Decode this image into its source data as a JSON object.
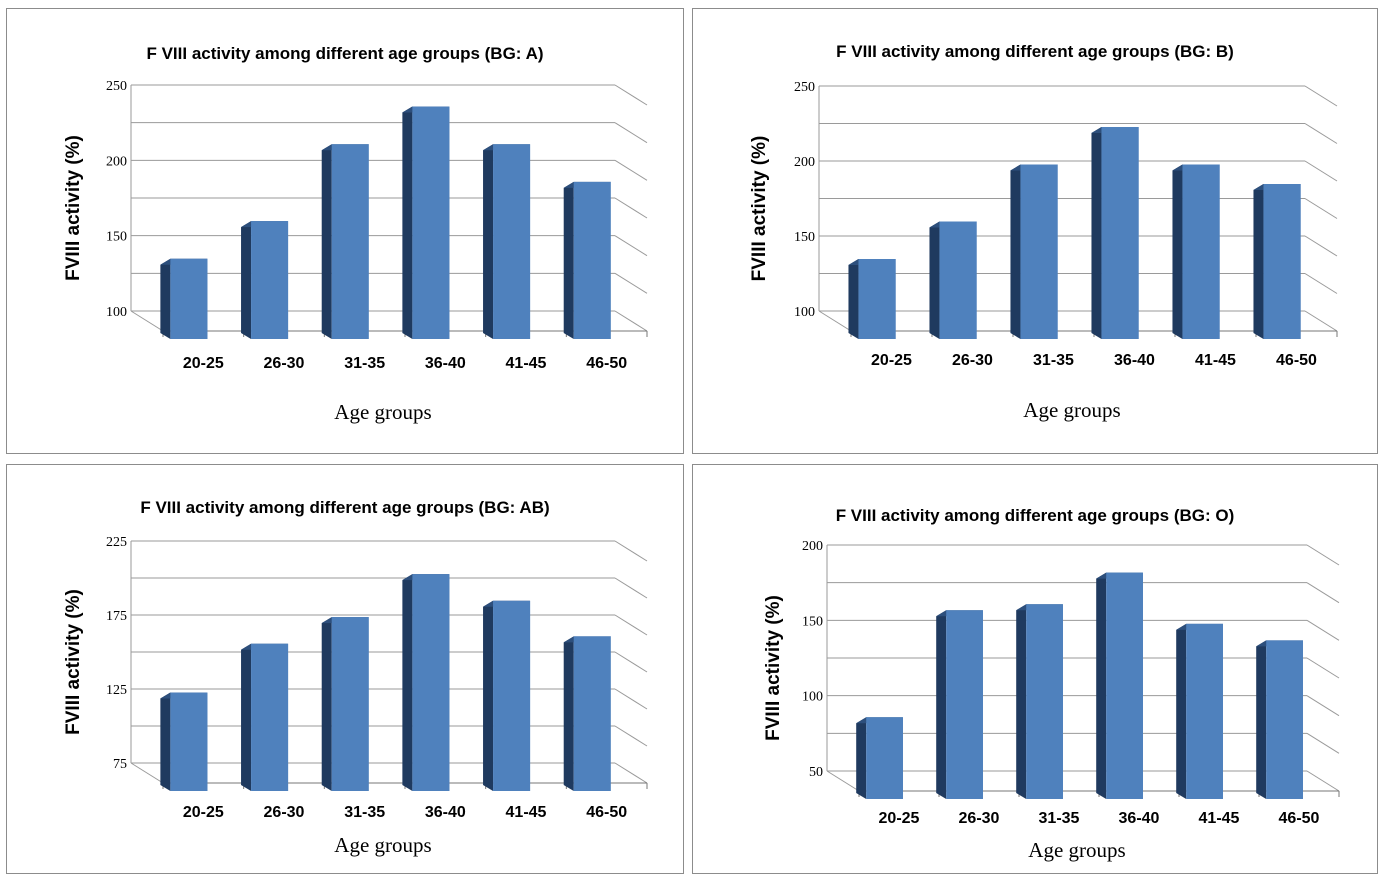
{
  "chart_data": [
    {
      "type": "bar",
      "title": "F VIII activity among different age groups (BG: A)",
      "ylabel": "FVIII activity (%)",
      "xlabel": "Age groups",
      "categories": [
        "20-25",
        "26-30",
        "31-35",
        "36-40",
        "41-45",
        "46-50"
      ],
      "values": [
        140,
        165,
        216,
        241,
        216,
        191
      ],
      "ylim": [
        100,
        250
      ],
      "yticks": [
        "100",
        "150",
        "200",
        "250"
      ],
      "grid": true,
      "color": "#4f81bd"
    },
    {
      "type": "bar",
      "title": "F VIII activity among different age groups (BG: B)",
      "ylabel": "FVIII activity (%)",
      "xlabel": "Age groups",
      "categories": [
        "20-25",
        "26-30",
        "31-35",
        "36-40",
        "41-45",
        "46-50"
      ],
      "values": [
        140,
        165,
        203,
        228,
        203,
        190
      ],
      "ylim": [
        100,
        250
      ],
      "yticks": [
        "100",
        "150",
        "200",
        "250"
      ],
      "grid": true,
      "color": "#4f81bd"
    },
    {
      "type": "bar",
      "title": "F VIII activity among different age groups (BG: AB)",
      "ylabel": "FVIII activity (%)",
      "xlabel": "Age groups",
      "categories": [
        "20-25",
        "26-30",
        "31-35",
        "36-40",
        "41-45",
        "46-50"
      ],
      "values": [
        128,
        161,
        179,
        208,
        190,
        166
      ],
      "ylim": [
        75,
        225
      ],
      "yticks": [
        "75",
        "125",
        "175",
        "225"
      ],
      "grid": true,
      "color": "#4f81bd"
    },
    {
      "type": "bar",
      "title": "F VIII activity among different age groups (BG: O)",
      "ylabel": "FVIII activity (%)",
      "xlabel": "Age groups",
      "categories": [
        "20-25",
        "26-30",
        "31-35",
        "36-40",
        "41-45",
        "46-50"
      ],
      "values": [
        91,
        162,
        166,
        187,
        153,
        142
      ],
      "ylim": [
        50,
        200
      ],
      "yticks": [
        "50",
        "100",
        "150",
        "200"
      ],
      "grid": true,
      "color": "#4f81bd"
    }
  ]
}
